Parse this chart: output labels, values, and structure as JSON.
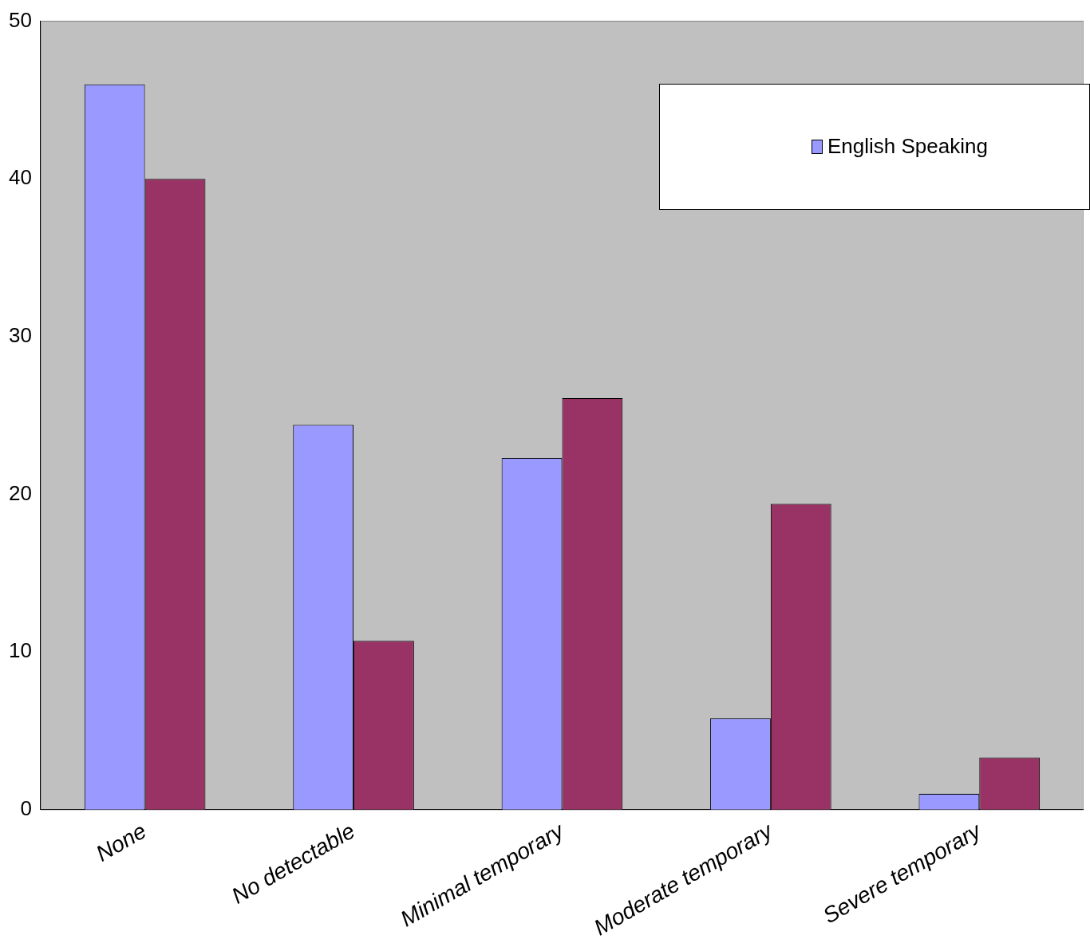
{
  "chart_data": {
    "type": "bar",
    "categories": [
      "None",
      "No detectable",
      "Minimal temporary",
      "Moderate temporary",
      "Severe temporary"
    ],
    "series": [
      {
        "name": "English Speaking",
        "color": "#9999ff",
        "values": [
          46.0,
          24.4,
          22.3,
          5.8,
          1.0
        ]
      },
      {
        "color": "#993366",
        "values": [
          40.0,
          10.7,
          26.1,
          19.4,
          3.3
        ]
      }
    ],
    "ylim": [
      0,
      50
    ],
    "yticks": [
      0,
      10,
      20,
      30,
      40,
      50
    ],
    "grid": false,
    "legend": "top right"
  }
}
